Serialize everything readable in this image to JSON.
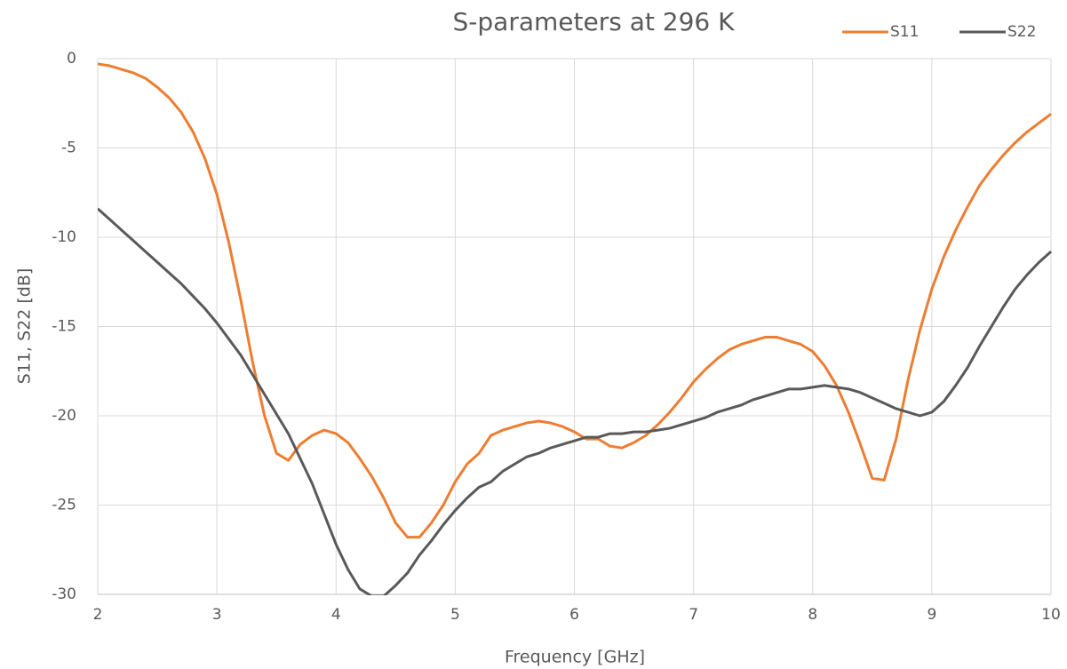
{
  "chart_data": {
    "type": "line",
    "title": "S-parameters at 296 K",
    "x_label": "Frequency [GHz]",
    "y_label": "S11, S22 [dB]",
    "x": [
      2.0,
      2.1,
      2.2,
      2.3,
      2.4,
      2.5,
      2.6,
      2.7,
      2.8,
      2.9,
      3.0,
      3.1,
      3.2,
      3.3,
      3.4,
      3.5,
      3.6,
      3.7,
      3.8,
      3.9,
      4.0,
      4.1,
      4.2,
      4.3,
      4.4,
      4.5,
      4.6,
      4.7,
      4.8,
      4.9,
      5.0,
      5.1,
      5.2,
      5.3,
      5.4,
      5.5,
      5.6,
      5.7,
      5.8,
      5.9,
      6.0,
      6.1,
      6.2,
      6.3,
      6.4,
      6.5,
      6.6,
      6.7,
      6.8,
      6.9,
      7.0,
      7.1,
      7.2,
      7.3,
      7.4,
      7.5,
      7.6,
      7.7,
      7.8,
      7.9,
      8.0,
      8.1,
      8.2,
      8.3,
      8.4,
      8.5,
      8.6,
      8.7,
      8.8,
      8.9,
      9.0,
      9.1,
      9.2,
      9.3,
      9.4,
      9.5,
      9.6,
      9.7,
      9.8,
      9.9,
      10.0
    ],
    "series": [
      {
        "name": "S11",
        "color": "#ed7d31",
        "values": [
          -0.3,
          -0.4,
          -0.6,
          -0.8,
          -1.1,
          -1.6,
          -2.2,
          -3.0,
          -4.1,
          -5.6,
          -7.6,
          -10.3,
          -13.5,
          -17.0,
          -20.0,
          -22.1,
          -22.5,
          -21.6,
          -21.1,
          -20.8,
          -21.0,
          -21.5,
          -22.4,
          -23.4,
          -24.6,
          -26.0,
          -26.8,
          -26.8,
          -26.0,
          -25.0,
          -23.7,
          -22.7,
          -22.1,
          -21.1,
          -20.8,
          -20.6,
          -20.4,
          -20.3,
          -20.4,
          -20.6,
          -20.9,
          -21.3,
          -21.3,
          -21.7,
          -21.8,
          -21.5,
          -21.1,
          -20.5,
          -19.8,
          -19.0,
          -18.1,
          -17.4,
          -16.8,
          -16.3,
          -16.0,
          -15.8,
          -15.6,
          -15.6,
          -15.8,
          -16.0,
          -16.4,
          -17.2,
          -18.3,
          -19.8,
          -21.6,
          -23.5,
          -23.6,
          -21.3,
          -18.0,
          -15.2,
          -12.9,
          -11.1,
          -9.6,
          -8.3,
          -7.1,
          -6.2,
          -5.4,
          -4.7,
          -4.1,
          -3.6,
          -3.1
        ]
      },
      {
        "name": "S22",
        "color": "#595959",
        "values": [
          -8.4,
          -9.0,
          -9.6,
          -10.2,
          -10.8,
          -11.4,
          -12.0,
          -12.6,
          -13.3,
          -14.0,
          -14.8,
          -15.7,
          -16.6,
          -17.7,
          -18.8,
          -19.9,
          -21.0,
          -22.4,
          -23.8,
          -25.5,
          -27.2,
          -28.6,
          -29.7,
          -30.1,
          -30.1,
          -29.5,
          -28.8,
          -27.8,
          -27.0,
          -26.1,
          -25.3,
          -24.6,
          -24.0,
          -23.7,
          -23.1,
          -22.7,
          -22.3,
          -22.1,
          -21.8,
          -21.6,
          -21.4,
          -21.2,
          -21.2,
          -21.0,
          -21.0,
          -20.9,
          -20.9,
          -20.8,
          -20.7,
          -20.5,
          -20.3,
          -20.1,
          -19.8,
          -19.6,
          -19.4,
          -19.1,
          -18.9,
          -18.7,
          -18.5,
          -18.5,
          -18.4,
          -18.3,
          -18.4,
          -18.5,
          -18.7,
          -19.0,
          -19.3,
          -19.6,
          -19.8,
          -20.0,
          -19.8,
          -19.2,
          -18.3,
          -17.3,
          -16.1,
          -15.0,
          -13.9,
          -12.9,
          -12.1,
          -11.4,
          -10.8
        ]
      }
    ],
    "xlim": [
      2,
      10
    ],
    "xticks": [
      2,
      3,
      4,
      5,
      6,
      7,
      8,
      9,
      10
    ],
    "ylim": [
      -30,
      0
    ],
    "yticks": [
      -30,
      -25,
      -20,
      -15,
      -10,
      -5,
      0
    ],
    "grid": true,
    "legend": "top-right"
  }
}
